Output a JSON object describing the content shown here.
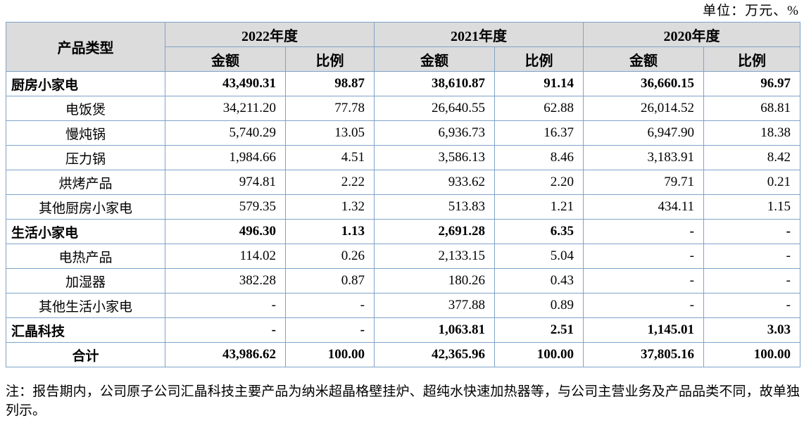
{
  "unit_label": "单位：万元、%",
  "table": {
    "product_header": "产品类型",
    "year_groups": [
      {
        "year": "2022年度",
        "amount_label": "金额",
        "ratio_label": "比例"
      },
      {
        "year": "2021年度",
        "amount_label": "金额",
        "ratio_label": "比例"
      },
      {
        "year": "2020年度",
        "amount_label": "金额",
        "ratio_label": "比例"
      }
    ],
    "rows": [
      {
        "name": "厨房小家电",
        "style": "group",
        "values": [
          "43,490.31",
          "98.87",
          "38,610.87",
          "91.14",
          "36,660.15",
          "96.97"
        ]
      },
      {
        "name": "电饭煲",
        "style": "sub",
        "values": [
          "34,211.20",
          "77.78",
          "26,640.55",
          "62.88",
          "26,014.52",
          "68.81"
        ]
      },
      {
        "name": "慢炖锅",
        "style": "sub",
        "values": [
          "5,740.29",
          "13.05",
          "6,936.73",
          "16.37",
          "6,947.90",
          "18.38"
        ]
      },
      {
        "name": "压力锅",
        "style": "sub",
        "values": [
          "1,984.66",
          "4.51",
          "3,586.13",
          "8.46",
          "3,183.91",
          "8.42"
        ]
      },
      {
        "name": "烘烤产品",
        "style": "sub",
        "values": [
          "974.81",
          "2.22",
          "933.62",
          "2.20",
          "79.71",
          "0.21"
        ]
      },
      {
        "name": "其他厨房小家电",
        "style": "sub",
        "values": [
          "579.35",
          "1.32",
          "513.83",
          "1.21",
          "434.11",
          "1.15"
        ]
      },
      {
        "name": "生活小家电",
        "style": "group",
        "values": [
          "496.30",
          "1.13",
          "2,691.28",
          "6.35",
          "-",
          "-"
        ]
      },
      {
        "name": "电热产品",
        "style": "sub",
        "values": [
          "114.02",
          "0.26",
          "2,133.15",
          "5.04",
          "-",
          "-"
        ]
      },
      {
        "name": "加湿器",
        "style": "sub",
        "values": [
          "382.28",
          "0.87",
          "180.26",
          "0.43",
          "-",
          "-"
        ]
      },
      {
        "name": "其他生活小家电",
        "style": "sub",
        "values": [
          "-",
          "-",
          "377.88",
          "0.89",
          "-",
          "-"
        ]
      },
      {
        "name": "汇晶科技",
        "style": "group",
        "values": [
          "-",
          "-",
          "1,063.81",
          "2.51",
          "1,145.01",
          "3.03"
        ]
      },
      {
        "name": "合计",
        "style": "total",
        "values": [
          "43,986.62",
          "100.00",
          "42,365.96",
          "100.00",
          "37,805.16",
          "100.00"
        ]
      }
    ]
  },
  "note": "注：报告期内，公司原子公司汇晶科技主要产品为纳米超晶格壁挂炉、超纯水快速加热器等，与公司主营业务及产品品类不同，故单独列示。"
}
